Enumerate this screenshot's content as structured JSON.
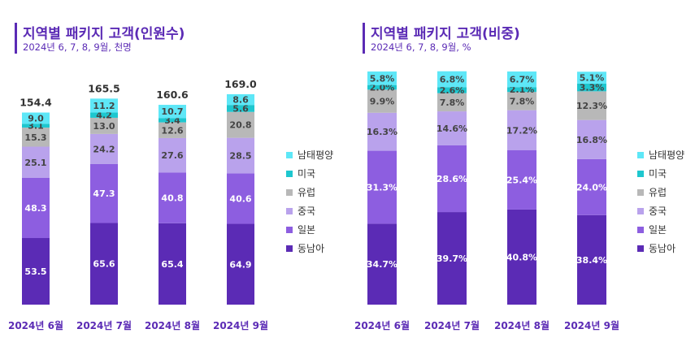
{
  "colors": {
    "남태평양": "#5ee7f7",
    "미국": "#1ec7cf",
    "유럽": "#b8b8b8",
    "중국": "#b9a2ec",
    "일본": "#8d5ee0",
    "동남아": "#5b2bb5",
    "title": "#5b2bb5"
  },
  "chart_data": [
    {
      "type": "bar",
      "stacked": true,
      "title": "지역별 패키지 고객(인원수)",
      "subtitle": "2024년 6, 7, 8, 9월, 천명",
      "categories": [
        "2024년 6월",
        "2024년 7월",
        "2024년 8월",
        "2024년 9월"
      ],
      "totals": [
        "154.4",
        "165.5",
        "160.6",
        "169.0"
      ],
      "series": [
        {
          "name": "동남아",
          "values": [
            53.5,
            65.6,
            65.4,
            64.9
          ],
          "labels": [
            "53.5",
            "65.6",
            "65.4",
            "64.9"
          ]
        },
        {
          "name": "일본",
          "values": [
            48.3,
            47.3,
            40.8,
            40.6
          ],
          "labels": [
            "48.3",
            "47.3",
            "40.8",
            "40.6"
          ]
        },
        {
          "name": "중국",
          "values": [
            25.1,
            24.2,
            27.6,
            28.5
          ],
          "labels": [
            "25.1",
            "24.2",
            "27.6",
            "28.5"
          ]
        },
        {
          "name": "유럽",
          "values": [
            15.3,
            13.0,
            12.6,
            20.8
          ],
          "labels": [
            "15.3",
            "13.0",
            "12.6",
            "20.8"
          ]
        },
        {
          "name": "미국",
          "values": [
            3.1,
            4.2,
            3.4,
            5.6
          ],
          "labels": [
            "3.1",
            "4.2",
            "3.4",
            "5.6"
          ]
        },
        {
          "name": "남태평양",
          "values": [
            9.0,
            11.2,
            10.7,
            8.6
          ],
          "labels": [
            "9.0",
            "11.2",
            "10.7",
            "8.6"
          ]
        }
      ],
      "legend": [
        "남태평양",
        "미국",
        "유럽",
        "중국",
        "일본",
        "동남아"
      ],
      "legend_position": "right",
      "ylim": [
        0,
        169
      ]
    },
    {
      "type": "bar",
      "stacked": true,
      "title": "지역별 패키지 고객(비중)",
      "subtitle": "2024년 6, 7, 8, 9월, %",
      "categories": [
        "2024년 6월",
        "2024년 7월",
        "2024년 8월",
        "2024년 9월"
      ],
      "series": [
        {
          "name": "동남아",
          "values": [
            34.7,
            39.7,
            40.8,
            38.4
          ],
          "labels": [
            "34.7%",
            "39.7%",
            "40.8%",
            "38.4%"
          ]
        },
        {
          "name": "일본",
          "values": [
            31.3,
            28.6,
            25.4,
            24.0
          ],
          "labels": [
            "31.3%",
            "28.6%",
            "25.4%",
            "24.0%"
          ]
        },
        {
          "name": "중국",
          "values": [
            16.3,
            14.6,
            17.2,
            16.8
          ],
          "labels": [
            "16.3%",
            "14.6%",
            "17.2%",
            "16.8%"
          ]
        },
        {
          "name": "유럽",
          "values": [
            9.9,
            7.8,
            7.8,
            12.3
          ],
          "labels": [
            "9.9%",
            "7.8%",
            "7.8%",
            "12.3%"
          ]
        },
        {
          "name": "미국",
          "values": [
            2.0,
            2.6,
            2.1,
            3.3
          ],
          "labels": [
            "2.0%",
            "2.6%",
            "2.1%",
            "3.3%"
          ]
        },
        {
          "name": "남태평양",
          "values": [
            5.8,
            6.8,
            6.7,
            5.1
          ],
          "labels": [
            "5.8%",
            "6.8%",
            "6.7%",
            "5.1%"
          ]
        }
      ],
      "legend": [
        "남태평양",
        "미국",
        "유럽",
        "중국",
        "일본",
        "동남아"
      ],
      "legend_position": "right",
      "ylim": [
        0,
        100
      ]
    }
  ]
}
